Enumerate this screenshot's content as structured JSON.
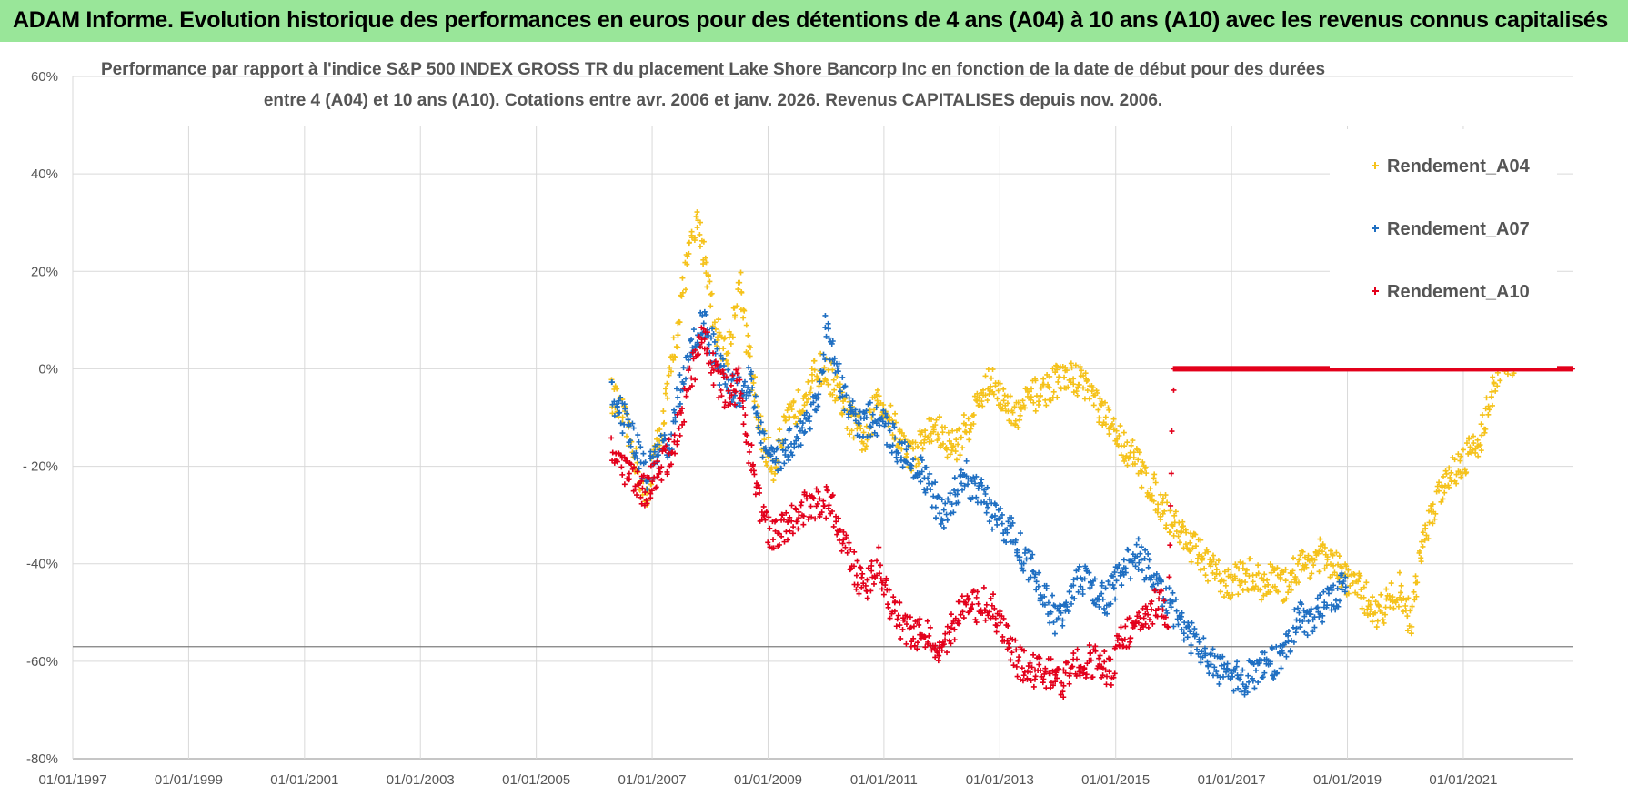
{
  "banner": {
    "title": "ADAM Informe. Evolution historique des performances en euros pour des détentions de 4 ans (A04) à 10 ans (A10) avec les revenus connus capitalisés"
  },
  "chart_data": {
    "type": "scatter",
    "title_line1": "Performance par rapport à l'indice S&P 500 INDEX GROSS TR  du placement Lake Shore Bancorp Inc en fonction de la date de début pour des durées",
    "title_line2": "entre 4 (A04) et 10 ans (A10).  Cotations entre avr. 2006 et janv. 2026. Revenus CAPITALISES depuis nov. 2006.",
    "x_tick_labels": [
      "01/01/1997",
      "01/01/1999",
      "01/01/2001",
      "01/01/2003",
      "01/01/2005",
      "01/01/2007",
      "01/01/2009",
      "01/01/2011",
      "01/01/2013",
      "01/01/2015",
      "01/01/2017",
      "01/01/2019",
      "01/01/2021"
    ],
    "x_ticks": [
      1997,
      1999,
      2001,
      2003,
      2005,
      2007,
      2009,
      2011,
      2013,
      2015,
      2017,
      2019,
      2021
    ],
    "xlim": [
      1997,
      2022.9
    ],
    "y_tick_labels": [
      "60%",
      "40%",
      "20%",
      "0%",
      "- 20%",
      "-40%",
      "-60%",
      "-80%"
    ],
    "y_ticks": [
      60,
      40,
      20,
      0,
      -20,
      -40,
      -60,
      -80
    ],
    "ylim": [
      -80,
      60
    ],
    "reference_line_y": -57,
    "legend_position": "top-right",
    "series": [
      {
        "name": "Rendement_A04",
        "color": "#f5c21b",
        "marker": "+",
        "points": [
          [
            2006.3,
            -5
          ],
          [
            2006.5,
            -10
          ],
          [
            2006.7,
            -18
          ],
          [
            2006.9,
            -28
          ],
          [
            2007.0,
            -20
          ],
          [
            2007.2,
            -10
          ],
          [
            2007.4,
            5
          ],
          [
            2007.6,
            22
          ],
          [
            2007.8,
            30
          ],
          [
            2007.95,
            20
          ],
          [
            2008.1,
            8
          ],
          [
            2008.3,
            3
          ],
          [
            2008.5,
            18
          ],
          [
            2008.7,
            0
          ],
          [
            2008.9,
            -15
          ],
          [
            2009.1,
            -20
          ],
          [
            2009.3,
            -12
          ],
          [
            2009.5,
            -8
          ],
          [
            2009.7,
            -3
          ],
          [
            2009.9,
            0
          ],
          [
            2010.1,
            -2
          ],
          [
            2010.3,
            -8
          ],
          [
            2010.5,
            -12
          ],
          [
            2010.7,
            -15
          ],
          [
            2010.9,
            -5
          ],
          [
            2011.1,
            -10
          ],
          [
            2011.3,
            -15
          ],
          [
            2011.5,
            -18
          ],
          [
            2011.7,
            -14
          ],
          [
            2011.9,
            -12
          ],
          [
            2012.1,
            -16
          ],
          [
            2012.3,
            -15
          ],
          [
            2012.5,
            -10
          ],
          [
            2012.7,
            -5
          ],
          [
            2012.9,
            -2
          ],
          [
            2013.1,
            -8
          ],
          [
            2013.3,
            -10
          ],
          [
            2013.5,
            -6
          ],
          [
            2013.7,
            -5
          ],
          [
            2013.9,
            -3
          ],
          [
            2014.1,
            -2
          ],
          [
            2014.3,
            -2
          ],
          [
            2014.5,
            -3
          ],
          [
            2014.7,
            -8
          ],
          [
            2014.9,
            -12
          ],
          [
            2015.1,
            -15
          ],
          [
            2015.3,
            -18
          ],
          [
            2015.5,
            -22
          ],
          [
            2015.7,
            -26
          ],
          [
            2015.9,
            -30
          ],
          [
            2016.1,
            -33
          ],
          [
            2016.3,
            -36
          ],
          [
            2016.5,
            -39
          ],
          [
            2016.7,
            -42
          ],
          [
            2016.9,
            -44
          ],
          [
            2017.1,
            -43
          ],
          [
            2017.3,
            -42
          ],
          [
            2017.5,
            -44
          ],
          [
            2017.7,
            -43
          ],
          [
            2017.9,
            -45
          ],
          [
            2018.1,
            -41
          ],
          [
            2018.3,
            -40
          ],
          [
            2018.5,
            -38
          ],
          [
            2018.7,
            -40
          ],
          [
            2018.9,
            -42
          ],
          [
            2019.1,
            -44
          ],
          [
            2019.3,
            -47
          ],
          [
            2019.5,
            -50
          ],
          [
            2019.7,
            -48
          ],
          [
            2019.9,
            -45
          ],
          [
            2020.1,
            -52
          ],
          [
            2020.3,
            -35
          ],
          [
            2020.5,
            -28
          ],
          [
            2020.7,
            -22
          ],
          [
            2020.9,
            -20
          ],
          [
            2021.1,
            -17
          ],
          [
            2021.3,
            -14
          ],
          [
            2021.5,
            -5
          ],
          [
            2021.7,
            2
          ],
          [
            2021.9,
            0
          ]
        ]
      },
      {
        "name": "Rendement_A07",
        "color": "#1f6fc2",
        "marker": "+",
        "points": [
          [
            2006.3,
            -5
          ],
          [
            2006.5,
            -10
          ],
          [
            2006.7,
            -15
          ],
          [
            2006.9,
            -22
          ],
          [
            2007.1,
            -18
          ],
          [
            2007.3,
            -15
          ],
          [
            2007.5,
            -3
          ],
          [
            2007.7,
            5
          ],
          [
            2007.9,
            10
          ],
          [
            2008.1,
            2
          ],
          [
            2008.3,
            -3
          ],
          [
            2008.5,
            -5
          ],
          [
            2008.7,
            -2
          ],
          [
            2008.9,
            -15
          ],
          [
            2009.1,
            -20
          ],
          [
            2009.3,
            -16
          ],
          [
            2009.5,
            -14
          ],
          [
            2009.7,
            -10
          ],
          [
            2009.9,
            -5
          ],
          [
            2010.0,
            8
          ],
          [
            2010.2,
            -2
          ],
          [
            2010.4,
            -8
          ],
          [
            2010.6,
            -12
          ],
          [
            2010.8,
            -10
          ],
          [
            2011.0,
            -12
          ],
          [
            2011.2,
            -15
          ],
          [
            2011.4,
            -18
          ],
          [
            2011.6,
            -20
          ],
          [
            2011.8,
            -25
          ],
          [
            2012.0,
            -30
          ],
          [
            2012.2,
            -26
          ],
          [
            2012.4,
            -22
          ],
          [
            2012.6,
            -25
          ],
          [
            2012.8,
            -28
          ],
          [
            2013.0,
            -32
          ],
          [
            2013.2,
            -33
          ],
          [
            2013.4,
            -38
          ],
          [
            2013.6,
            -42
          ],
          [
            2013.8,
            -48
          ],
          [
            2014.0,
            -52
          ],
          [
            2014.2,
            -46
          ],
          [
            2014.4,
            -43
          ],
          [
            2014.6,
            -45
          ],
          [
            2014.8,
            -48
          ],
          [
            2015.0,
            -44
          ],
          [
            2015.2,
            -40
          ],
          [
            2015.4,
            -38
          ],
          [
            2015.6,
            -42
          ],
          [
            2015.8,
            -46
          ],
          [
            2016.0,
            -50
          ],
          [
            2016.2,
            -53
          ],
          [
            2016.4,
            -57
          ],
          [
            2016.6,
            -60
          ],
          [
            2016.8,
            -62
          ],
          [
            2017.0,
            -63
          ],
          [
            2017.2,
            -64
          ],
          [
            2017.4,
            -62
          ],
          [
            2017.6,
            -61
          ],
          [
            2017.8,
            -60
          ],
          [
            2018.0,
            -55
          ],
          [
            2018.2,
            -50
          ],
          [
            2018.4,
            -52
          ],
          [
            2018.6,
            -48
          ],
          [
            2018.8,
            -46
          ],
          [
            2019.0,
            -42
          ]
        ]
      },
      {
        "name": "Rendement_A10",
        "color": "#e3001b",
        "marker": "+",
        "points": [
          [
            2006.3,
            -16
          ],
          [
            2006.5,
            -21
          ],
          [
            2006.7,
            -23
          ],
          [
            2006.9,
            -25
          ],
          [
            2007.1,
            -21
          ],
          [
            2007.3,
            -18
          ],
          [
            2007.5,
            -10
          ],
          [
            2007.7,
            0
          ],
          [
            2007.9,
            8
          ],
          [
            2008.1,
            -2
          ],
          [
            2008.3,
            -5
          ],
          [
            2008.5,
            -3
          ],
          [
            2008.7,
            -18
          ],
          [
            2008.9,
            -30
          ],
          [
            2009.1,
            -35
          ],
          [
            2009.3,
            -32
          ],
          [
            2009.5,
            -30
          ],
          [
            2009.7,
            -28
          ],
          [
            2009.9,
            -27
          ],
          [
            2010.1,
            -28
          ],
          [
            2010.3,
            -35
          ],
          [
            2010.5,
            -42
          ],
          [
            2010.7,
            -45
          ],
          [
            2010.9,
            -40
          ],
          [
            2011.1,
            -48
          ],
          [
            2011.3,
            -52
          ],
          [
            2011.5,
            -55
          ],
          [
            2011.7,
            -54
          ],
          [
            2011.9,
            -57
          ],
          [
            2012.1,
            -55
          ],
          [
            2012.3,
            -50
          ],
          [
            2012.5,
            -49
          ],
          [
            2012.7,
            -48
          ],
          [
            2012.9,
            -50
          ],
          [
            2013.1,
            -55
          ],
          [
            2013.3,
            -60
          ],
          [
            2013.5,
            -62
          ],
          [
            2013.7,
            -62
          ],
          [
            2013.9,
            -63
          ],
          [
            2014.1,
            -64
          ],
          [
            2014.3,
            -61
          ],
          [
            2014.5,
            -60
          ],
          [
            2014.7,
            -60
          ],
          [
            2014.9,
            -62
          ],
          [
            2015.1,
            -55
          ],
          [
            2015.3,
            -53
          ],
          [
            2015.5,
            -52
          ],
          [
            2015.7,
            -48
          ],
          [
            2015.9,
            -50
          ],
          [
            2016.0,
            0
          ],
          [
            2017.0,
            0
          ],
          [
            2018.0,
            0
          ],
          [
            2019.0,
            0
          ],
          [
            2020.0,
            0
          ],
          [
            2021.0,
            0
          ],
          [
            2022.0,
            0
          ],
          [
            2022.9,
            0
          ]
        ]
      }
    ]
  }
}
